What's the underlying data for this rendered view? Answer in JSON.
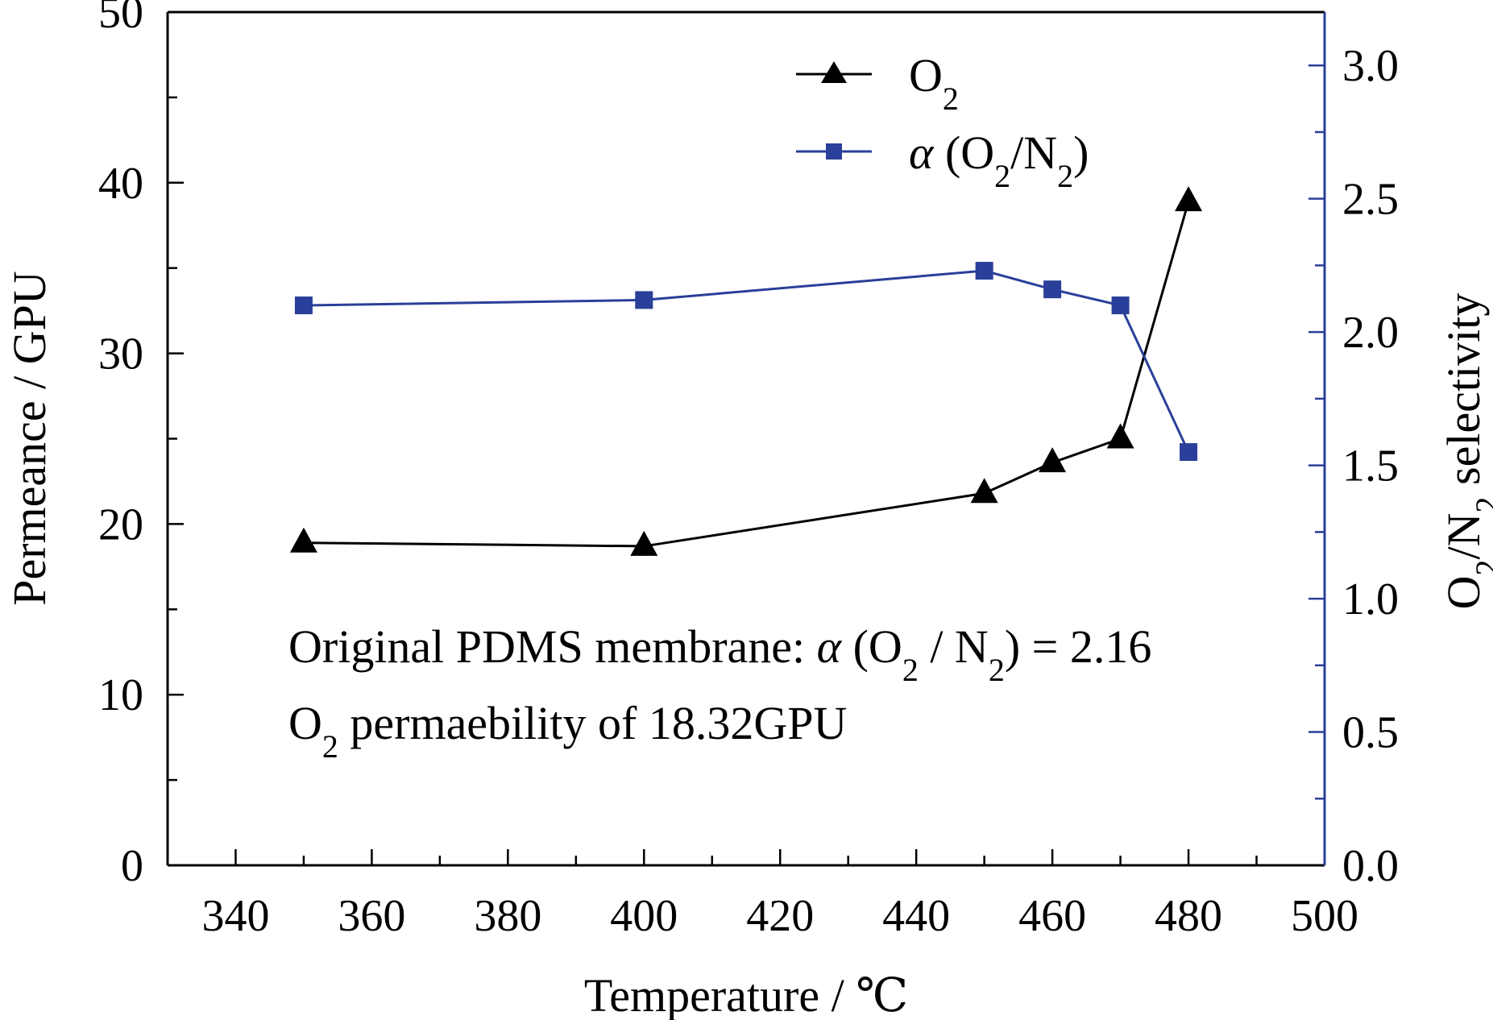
{
  "chart_data": {
    "type": "line",
    "xlabel": "Temperature / ℃",
    "ylabel_left": {
      "main": "Permeance / GPU"
    },
    "ylabel_right": {
      "a": "O",
      "a_sub": "2",
      "b": "/N",
      "b_sub": "2",
      "c": " selectivity"
    },
    "xlim": [
      330,
      500
    ],
    "ylim_left": [
      0,
      50
    ],
    "ylim_right": [
      0.0,
      3.2
    ],
    "x_ticks": [
      340,
      360,
      380,
      400,
      420,
      440,
      460,
      480,
      500
    ],
    "y_left_ticks": [
      0,
      10,
      20,
      30,
      40,
      50
    ],
    "y_right_ticks": [
      "0.0",
      "0.5",
      "1.0",
      "1.5",
      "2.0",
      "2.5",
      "3.0"
    ],
    "legend_position": "top-right",
    "series": [
      {
        "name": "O₂",
        "name_parts": {
          "main": "O",
          "sub": "2"
        },
        "axis": "left",
        "color": "#000000",
        "marker": "triangle",
        "x": [
          350,
          400,
          450,
          460,
          470,
          480
        ],
        "y": [
          18.9,
          18.7,
          21.8,
          23.6,
          25.0,
          38.9
        ]
      },
      {
        "name": "α (O₂/N₂)",
        "name_parts": {
          "alpha": "α",
          "p1": " (O",
          "s1": "2",
          "p2": "/N",
          "s2": "2",
          "p3": ")"
        },
        "axis": "right",
        "color": "#2a3f99",
        "marker": "square",
        "x": [
          350,
          400,
          450,
          460,
          470,
          480
        ],
        "y": [
          2.1,
          2.12,
          2.23,
          2.16,
          2.1,
          1.55
        ]
      }
    ],
    "annotations": {
      "line1": {
        "t1": "Original PDMS membrane: ",
        "alpha": "α",
        "t2": " (O",
        "s1": "2",
        "t3": " / N",
        "s2": "2",
        "t4": ") = 2.16"
      },
      "line2": {
        "t1": "O",
        "s1": "2",
        "t2": " permaebility of 18.32GPU"
      }
    }
  }
}
